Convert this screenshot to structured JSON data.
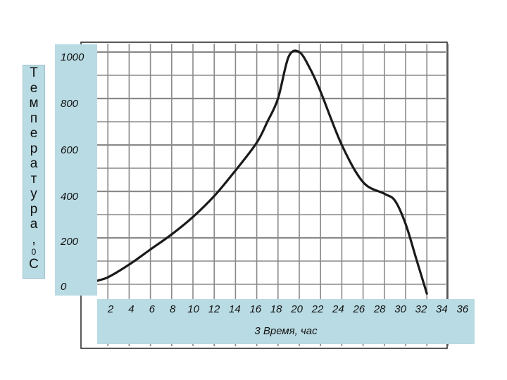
{
  "chart_data": {
    "type": "line",
    "ylabel": "Температура, 0 С",
    "ylabel_chars": [
      "Т",
      "е",
      "м",
      "п",
      "е",
      "р",
      "а",
      "т",
      "у",
      "р",
      "а",
      ",",
      "0",
      "С"
    ],
    "xlabel": "3   Время, час",
    "y_ticks": [
      "1000",
      "800",
      "600",
      "400",
      "200",
      "0"
    ],
    "x_ticks": [
      "2",
      "4",
      "6",
      "8",
      "10",
      "12",
      "14",
      "16",
      "18",
      "20",
      "22",
      "24",
      "26",
      "28",
      "30",
      "32",
      "34",
      "36"
    ],
    "xlim": [
      0,
      36
    ],
    "ylim": [
      0,
      1000
    ],
    "grid": true,
    "series": [
      {
        "x": [
          0,
          1,
          2,
          4,
          6,
          8,
          10,
          12,
          14,
          16,
          17,
          18,
          19,
          20,
          21,
          22,
          24,
          26,
          28,
          29,
          30,
          31,
          32
        ],
        "y": [
          -10,
          15,
          30,
          85,
          150,
          215,
          290,
          380,
          490,
          610,
          700,
          800,
          980,
          1000,
          930,
          830,
          600,
          440,
          390,
          360,
          260,
          110,
          -40
        ]
      }
    ],
    "colors": {
      "line": "#1a1a1a",
      "grid": "#8a8a8a",
      "box": "#b9dbe3"
    }
  }
}
